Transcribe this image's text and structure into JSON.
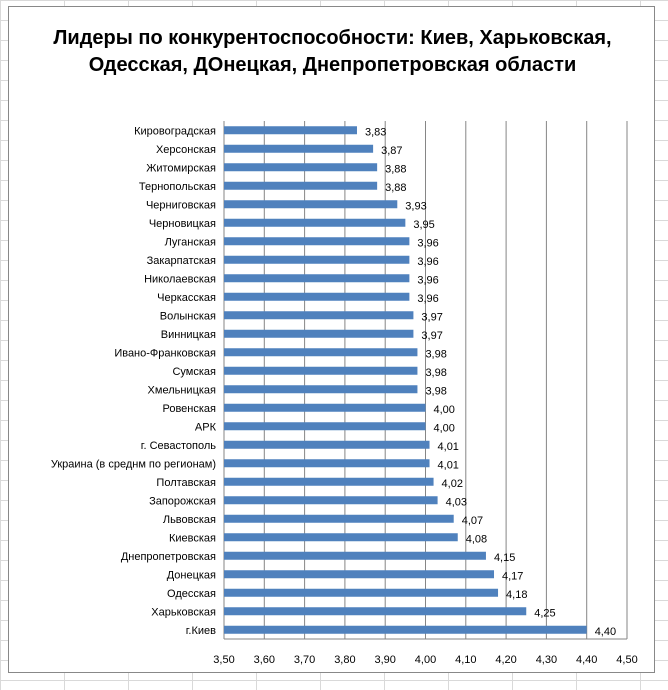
{
  "chart_data": {
    "type": "bar",
    "orientation": "horizontal",
    "title": "Лидеры по конкурентоспособности: Киев, Харьковская, Одесская, ДОнецкая, Днепропетровская области",
    "categories": [
      "Кировоградская",
      "Херсонская",
      "Житомирская",
      "Тернопольская",
      "Черниговская",
      "Черновицкая",
      "Луганская",
      "Закарпатская",
      "Николаевская",
      "Черкасская",
      "Волынская",
      "Винницкая",
      "Ивано-Франковская",
      "Сумская",
      "Хмельницкая",
      "Ровенская",
      "АРК",
      "г. Севастополь",
      "Украина (в среднм по регионам)",
      "Полтавская",
      "Запорожская",
      "Львовская",
      "Киевская",
      "Днепропетровская",
      "Донецкая",
      "Одесская",
      "Харьковская",
      "г.Киев"
    ],
    "values": [
      3.83,
      3.87,
      3.88,
      3.88,
      3.93,
      3.95,
      3.96,
      3.96,
      3.96,
      3.96,
      3.97,
      3.97,
      3.98,
      3.98,
      3.98,
      4.0,
      4.0,
      4.01,
      4.01,
      4.02,
      4.03,
      4.07,
      4.08,
      4.15,
      4.17,
      4.18,
      4.25,
      4.4
    ],
    "data_labels": [
      "3,83",
      "3,87",
      "3,88",
      "3,88",
      "3,93",
      "3,95",
      "3,96",
      "3,96",
      "3,96",
      "3,96",
      "3,97",
      "3,97",
      "3,98",
      "3,98",
      "3,98",
      "4,00",
      "4,00",
      "4,01",
      "4,01",
      "4,02",
      "4,03",
      "4,07",
      "4,08",
      "4,15",
      "4,17",
      "4,18",
      "4,25",
      "4,40"
    ],
    "xlim": [
      3.5,
      4.5
    ],
    "xticks": [
      "3,50",
      "3,60",
      "3,70",
      "3,80",
      "3,90",
      "4,00",
      "4,10",
      "4,20",
      "4,30",
      "4,40",
      "4,50"
    ],
    "grid": true,
    "bar_color": "#4F81BD"
  }
}
